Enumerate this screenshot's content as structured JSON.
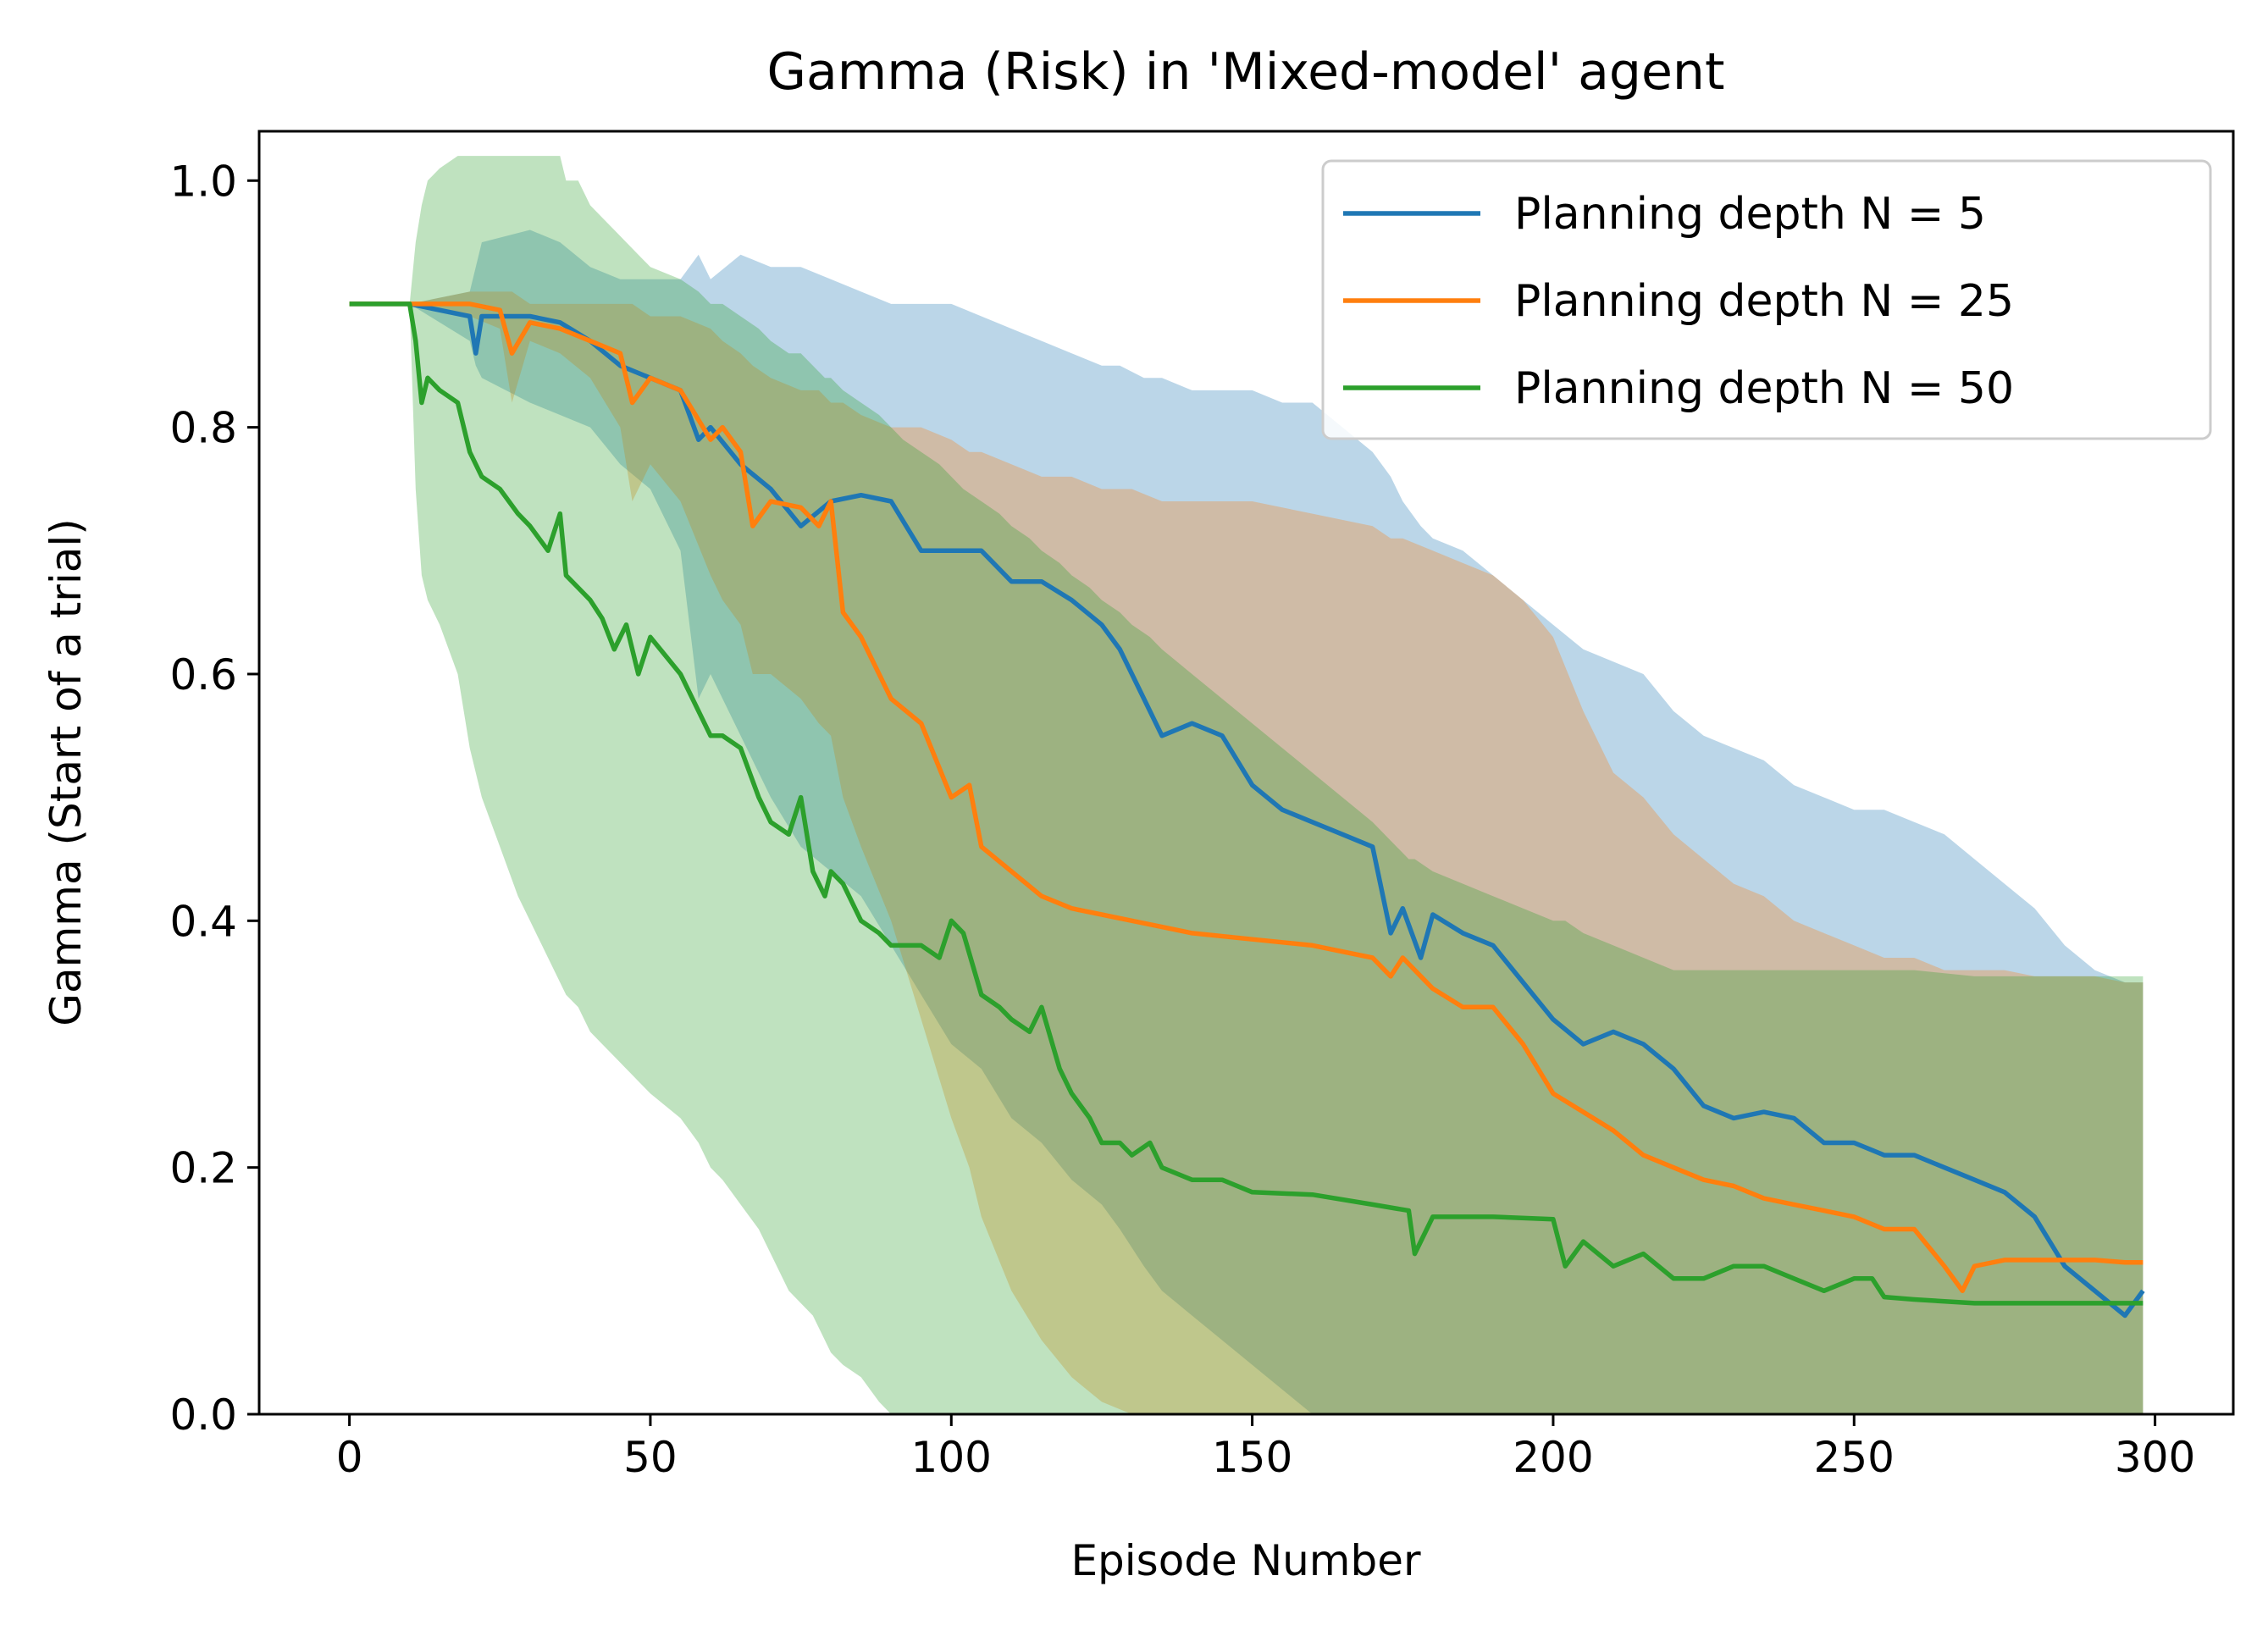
{
  "chart_data": {
    "type": "line",
    "title": "Gamma (Risk) in 'Mixed-model' agent",
    "xlabel": "Episode Number",
    "ylabel": "Gamma (Start of a trial)",
    "xlim": [
      -15,
      313
    ],
    "ylim": [
      0.0,
      1.04
    ],
    "xticks": [
      0,
      50,
      100,
      150,
      200,
      250,
      300
    ],
    "yticks": [
      0.0,
      0.2,
      0.4,
      0.6,
      0.8,
      1.0
    ],
    "xtick_labels": [
      "0",
      "50",
      "100",
      "150",
      "200",
      "250",
      "300"
    ],
    "ytick_labels": [
      "0.0",
      "0.2",
      "0.4",
      "0.6",
      "0.8",
      "1.0"
    ],
    "grid": false,
    "legend_position": "top-right",
    "series": [
      {
        "name": "Planning depth N = 5",
        "color": "#1f77b4",
        "x": [
          0,
          10,
          20,
          21,
          22,
          30,
          35,
          40,
          45,
          50,
          55,
          58,
          60,
          65,
          70,
          75,
          80,
          85,
          90,
          95,
          100,
          105,
          110,
          115,
          120,
          125,
          128,
          132,
          135,
          140,
          145,
          150,
          155,
          160,
          165,
          170,
          173,
          175,
          178,
          180,
          185,
          190,
          195,
          200,
          205,
          210,
          215,
          220,
          225,
          230,
          235,
          240,
          245,
          250,
          255,
          260,
          265,
          270,
          275,
          280,
          285,
          290,
          295,
          298
        ],
        "y": [
          0.9,
          0.9,
          0.89,
          0.86,
          0.89,
          0.89,
          0.885,
          0.87,
          0.85,
          0.84,
          0.83,
          0.79,
          0.8,
          0.77,
          0.75,
          0.72,
          0.74,
          0.745,
          0.74,
          0.7,
          0.7,
          0.7,
          0.675,
          0.675,
          0.66,
          0.64,
          0.62,
          0.58,
          0.55,
          0.56,
          0.55,
          0.51,
          0.49,
          0.48,
          0.47,
          0.46,
          0.39,
          0.41,
          0.37,
          0.405,
          0.39,
          0.38,
          0.35,
          0.32,
          0.3,
          0.31,
          0.3,
          0.28,
          0.25,
          0.24,
          0.245,
          0.24,
          0.22,
          0.22,
          0.21,
          0.21,
          0.2,
          0.19,
          0.18,
          0.16,
          0.12,
          0.1,
          0.08,
          0.1
        ],
        "upper": [
          0.9,
          0.9,
          0.91,
          0.93,
          0.95,
          0.96,
          0.95,
          0.93,
          0.92,
          0.92,
          0.92,
          0.94,
          0.92,
          0.94,
          0.93,
          0.93,
          0.92,
          0.91,
          0.9,
          0.9,
          0.9,
          0.89,
          0.88,
          0.87,
          0.86,
          0.85,
          0.85,
          0.84,
          0.84,
          0.83,
          0.83,
          0.83,
          0.82,
          0.82,
          0.8,
          0.78,
          0.76,
          0.74,
          0.72,
          0.71,
          0.7,
          0.68,
          0.66,
          0.64,
          0.62,
          0.61,
          0.6,
          0.57,
          0.55,
          0.54,
          0.53,
          0.51,
          0.5,
          0.49,
          0.49,
          0.48,
          0.47,
          0.45,
          0.43,
          0.41,
          0.38,
          0.36,
          0.35,
          0.35
        ],
        "lower": [
          0.9,
          0.9,
          0.87,
          0.85,
          0.84,
          0.82,
          0.81,
          0.8,
          0.77,
          0.75,
          0.7,
          0.58,
          0.6,
          0.55,
          0.5,
          0.46,
          0.44,
          0.42,
          0.38,
          0.34,
          0.3,
          0.28,
          0.24,
          0.22,
          0.19,
          0.17,
          0.15,
          0.12,
          0.1,
          0.08,
          0.06,
          0.04,
          0.02,
          0.0,
          0.0,
          0.0,
          0.0,
          0.0,
          0.0,
          0.0,
          0.0,
          0.0,
          0.0,
          0.0,
          0.0,
          0.0,
          0.0,
          0.0,
          0.0,
          0.0,
          0.0,
          0.0,
          0.0,
          0.0,
          0.0,
          0.0,
          0.0,
          0.0,
          0.0,
          0.0,
          0.0,
          0.0,
          0.0,
          0.0
        ]
      },
      {
        "name": "Planning depth N = 25",
        "color": "#ff7f0e",
        "x": [
          0,
          10,
          20,
          25,
          27,
          30,
          35,
          40,
          45,
          47,
          50,
          55,
          60,
          62,
          65,
          67,
          70,
          75,
          78,
          80,
          82,
          85,
          90,
          95,
          100,
          103,
          105,
          110,
          115,
          120,
          125,
          130,
          135,
          140,
          150,
          160,
          170,
          173,
          175,
          180,
          185,
          190,
          195,
          200,
          205,
          210,
          215,
          220,
          225,
          230,
          235,
          240,
          245,
          250,
          255,
          260,
          265,
          268,
          270,
          275,
          280,
          285,
          290,
          295,
          298
        ],
        "y": [
          0.9,
          0.9,
          0.9,
          0.895,
          0.86,
          0.885,
          0.88,
          0.87,
          0.86,
          0.82,
          0.84,
          0.83,
          0.79,
          0.8,
          0.78,
          0.72,
          0.74,
          0.735,
          0.72,
          0.74,
          0.65,
          0.63,
          0.58,
          0.56,
          0.5,
          0.51,
          0.46,
          0.44,
          0.42,
          0.41,
          0.405,
          0.4,
          0.395,
          0.39,
          0.385,
          0.38,
          0.37,
          0.355,
          0.37,
          0.345,
          0.33,
          0.33,
          0.3,
          0.26,
          0.245,
          0.23,
          0.21,
          0.2,
          0.19,
          0.185,
          0.175,
          0.17,
          0.165,
          0.16,
          0.15,
          0.15,
          0.12,
          0.1,
          0.12,
          0.125,
          0.125,
          0.125,
          0.125,
          0.123,
          0.123
        ],
        "upper": [
          0.9,
          0.9,
          0.91,
          0.91,
          0.91,
          0.9,
          0.9,
          0.9,
          0.9,
          0.9,
          0.89,
          0.89,
          0.88,
          0.87,
          0.86,
          0.85,
          0.84,
          0.83,
          0.83,
          0.82,
          0.82,
          0.81,
          0.8,
          0.8,
          0.79,
          0.78,
          0.78,
          0.77,
          0.76,
          0.76,
          0.75,
          0.75,
          0.74,
          0.74,
          0.74,
          0.73,
          0.72,
          0.71,
          0.71,
          0.7,
          0.69,
          0.68,
          0.66,
          0.63,
          0.57,
          0.52,
          0.5,
          0.47,
          0.45,
          0.43,
          0.42,
          0.4,
          0.39,
          0.38,
          0.37,
          0.37,
          0.36,
          0.36,
          0.36,
          0.36,
          0.355,
          0.355,
          0.355,
          0.35,
          0.35
        ],
        "lower": [
          0.9,
          0.9,
          0.89,
          0.88,
          0.82,
          0.87,
          0.86,
          0.84,
          0.8,
          0.74,
          0.77,
          0.74,
          0.68,
          0.66,
          0.64,
          0.6,
          0.6,
          0.58,
          0.56,
          0.55,
          0.5,
          0.46,
          0.4,
          0.32,
          0.24,
          0.2,
          0.16,
          0.1,
          0.06,
          0.03,
          0.01,
          0.0,
          0.0,
          0.0,
          0.0,
          0.0,
          0.0,
          0.0,
          0.0,
          0.0,
          0.0,
          0.0,
          0.0,
          0.0,
          0.0,
          0.0,
          0.0,
          0.0,
          0.0,
          0.0,
          0.0,
          0.0,
          0.0,
          0.0,
          0.0,
          0.0,
          0.0,
          0.0,
          0.0,
          0.0,
          0.0,
          0.0,
          0.0,
          0.0,
          0.0
        ]
      },
      {
        "name": "Planning depth N = 50",
        "color": "#2ca02c",
        "x": [
          0,
          10,
          11,
          12,
          13,
          15,
          18,
          20,
          22,
          25,
          28,
          30,
          33,
          35,
          36,
          38,
          40,
          42,
          44,
          46,
          48,
          50,
          55,
          58,
          60,
          62,
          65,
          68,
          70,
          73,
          75,
          77,
          79,
          80,
          82,
          85,
          88,
          90,
          92,
          95,
          98,
          100,
          102,
          105,
          108,
          110,
          113,
          115,
          118,
          120,
          123,
          125,
          128,
          130,
          133,
          135,
          140,
          145,
          150,
          160,
          170,
          176,
          177,
          180,
          190,
          200,
          202,
          205,
          210,
          215,
          220,
          225,
          230,
          235,
          240,
          245,
          250,
          253,
          255,
          260,
          270,
          280,
          290,
          298
        ],
        "y": [
          0.9,
          0.9,
          0.87,
          0.82,
          0.84,
          0.83,
          0.82,
          0.78,
          0.76,
          0.75,
          0.73,
          0.72,
          0.7,
          0.73,
          0.68,
          0.67,
          0.66,
          0.645,
          0.62,
          0.64,
          0.6,
          0.63,
          0.6,
          0.57,
          0.55,
          0.55,
          0.54,
          0.5,
          0.48,
          0.47,
          0.5,
          0.44,
          0.42,
          0.44,
          0.43,
          0.4,
          0.39,
          0.38,
          0.38,
          0.38,
          0.37,
          0.4,
          0.39,
          0.34,
          0.33,
          0.32,
          0.31,
          0.33,
          0.28,
          0.26,
          0.24,
          0.22,
          0.22,
          0.21,
          0.22,
          0.2,
          0.19,
          0.19,
          0.18,
          0.178,
          0.17,
          0.165,
          0.13,
          0.16,
          0.16,
          0.158,
          0.12,
          0.14,
          0.12,
          0.13,
          0.11,
          0.11,
          0.12,
          0.12,
          0.11,
          0.1,
          0.11,
          0.11,
          0.095,
          0.093,
          0.09,
          0.09,
          0.09,
          0.09
        ],
        "upper": [
          0.9,
          0.9,
          0.95,
          0.98,
          1.0,
          1.01,
          1.02,
          1.02,
          1.02,
          1.02,
          1.02,
          1.02,
          1.02,
          1.02,
          1.0,
          1.0,
          0.98,
          0.97,
          0.96,
          0.95,
          0.94,
          0.93,
          0.92,
          0.91,
          0.9,
          0.9,
          0.89,
          0.88,
          0.87,
          0.86,
          0.86,
          0.85,
          0.84,
          0.84,
          0.83,
          0.82,
          0.81,
          0.8,
          0.79,
          0.78,
          0.77,
          0.76,
          0.75,
          0.74,
          0.73,
          0.72,
          0.71,
          0.7,
          0.69,
          0.68,
          0.67,
          0.66,
          0.65,
          0.64,
          0.63,
          0.62,
          0.6,
          0.58,
          0.56,
          0.52,
          0.48,
          0.45,
          0.45,
          0.44,
          0.42,
          0.4,
          0.4,
          0.39,
          0.38,
          0.37,
          0.36,
          0.36,
          0.36,
          0.36,
          0.36,
          0.36,
          0.36,
          0.36,
          0.36,
          0.36,
          0.355,
          0.355,
          0.355,
          0.355
        ],
        "lower": [
          0.9,
          0.9,
          0.75,
          0.68,
          0.66,
          0.64,
          0.6,
          0.54,
          0.5,
          0.46,
          0.42,
          0.4,
          0.37,
          0.35,
          0.34,
          0.33,
          0.31,
          0.3,
          0.29,
          0.28,
          0.27,
          0.26,
          0.24,
          0.22,
          0.2,
          0.19,
          0.17,
          0.15,
          0.13,
          0.1,
          0.09,
          0.08,
          0.06,
          0.05,
          0.04,
          0.03,
          0.01,
          0.0,
          0.0,
          0.0,
          0.0,
          0.0,
          0.0,
          0.0,
          0.0,
          0.0,
          0.0,
          0.0,
          0.0,
          0.0,
          0.0,
          0.0,
          0.0,
          0.0,
          0.0,
          0.0,
          0.0,
          0.0,
          0.0,
          0.0,
          0.0,
          0.0,
          0.0,
          0.0,
          0.0,
          0.0,
          0.0,
          0.0,
          0.0,
          0.0,
          0.0,
          0.0,
          0.0,
          0.0,
          0.0,
          0.0,
          0.0,
          0.0,
          0.0,
          0.0,
          0.0,
          0.0,
          0.0,
          0.0
        ]
      }
    ]
  }
}
